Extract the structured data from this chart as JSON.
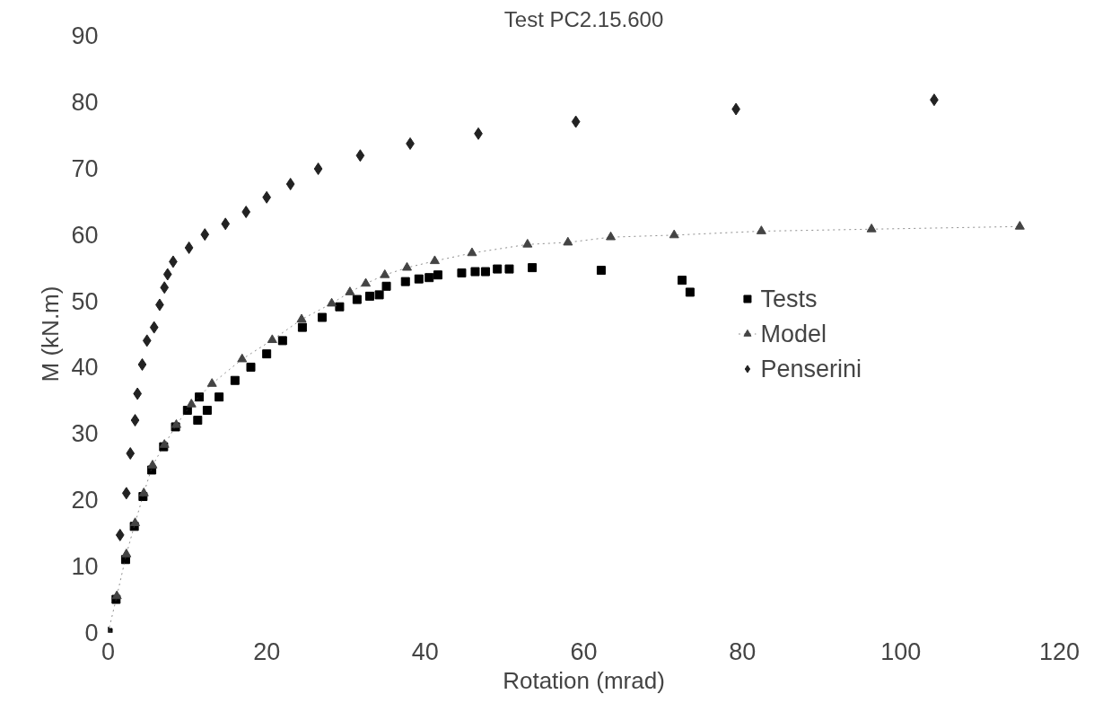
{
  "chart_data": {
    "type": "scatter",
    "title": "Test PC2.15.600",
    "xlabel": "Rotation (mrad)",
    "ylabel": "M (kN.m)",
    "xlim": [
      0,
      120
    ],
    "ylim": [
      0,
      90
    ],
    "xticks": [
      0,
      20,
      40,
      60,
      80,
      100,
      120
    ],
    "yticks": [
      0,
      10,
      20,
      30,
      40,
      50,
      60,
      70,
      80,
      90
    ],
    "grid": false,
    "legend": "right",
    "series": [
      {
        "name": "Tests",
        "marker": "square",
        "color": "#000000",
        "x": [
          0,
          1,
          2.2,
          3.3,
          4.4,
          5.5,
          7,
          8.5,
          10,
          11.5,
          11.3,
          12.5,
          14,
          16,
          18,
          20,
          22,
          24.5,
          27,
          29.2,
          31.4,
          33,
          34.2,
          35.1,
          37.5,
          39.2,
          40.5,
          41.6,
          44.6,
          46.3,
          47.6,
          49.1,
          50.6,
          53.5,
          62.2,
          72.4,
          73.4
        ],
        "values": [
          0,
          5,
          11,
          16,
          20.5,
          24.5,
          28,
          31,
          33.5,
          35.5,
          32,
          33.5,
          35.5,
          38,
          40,
          42,
          44,
          46,
          47.5,
          49.1,
          50.2,
          50.7,
          50.9,
          52.2,
          52.9,
          53.3,
          53.5,
          53.9,
          54.2,
          54.4,
          54.4,
          54.8,
          54.8,
          55,
          54.6,
          53.1,
          51.3
        ]
      },
      {
        "name": "Model",
        "type": "line",
        "marker": "triangle",
        "line_style": "dotted",
        "color": "#444444",
        "x": [
          0,
          1.1,
          2.3,
          3.4,
          4.5,
          5.6,
          7.1,
          8.6,
          10.5,
          13.1,
          16.9,
          20.7,
          24.4,
          28.2,
          30.5,
          32.5,
          34.9,
          37.7,
          41.2,
          45.9,
          52.9,
          58,
          63.4,
          71.4,
          82.4,
          96.3,
          115
        ],
        "values": [
          0,
          5.5,
          11.8,
          16.5,
          21,
          25.2,
          28.3,
          31.3,
          34.4,
          37.5,
          41.2,
          44.1,
          47.2,
          49.6,
          51.3,
          52.6,
          53.9,
          55,
          56,
          57.2,
          58.5,
          58.8,
          59.6,
          59.9,
          60.5,
          60.8,
          61.2
        ]
      },
      {
        "name": "Penserini",
        "marker": "diamond",
        "color": "#222222",
        "x": [
          0,
          1.5,
          2.3,
          2.8,
          3.4,
          3.7,
          4.3,
          4.9,
          5.8,
          6.5,
          7.1,
          7.5,
          8.2,
          10.2,
          12.2,
          14.8,
          17.4,
          20,
          23,
          26.5,
          31.8,
          38.1,
          46.7,
          59,
          79.2,
          104.2
        ],
        "values": [
          0,
          14.7,
          21,
          27,
          32,
          36,
          40.4,
          44,
          46,
          49.4,
          52,
          54,
          55.9,
          58,
          60,
          61.6,
          63.4,
          65.6,
          67.6,
          69.9,
          71.9,
          73.7,
          75.2,
          77,
          78.9,
          80.3
        ]
      }
    ]
  }
}
